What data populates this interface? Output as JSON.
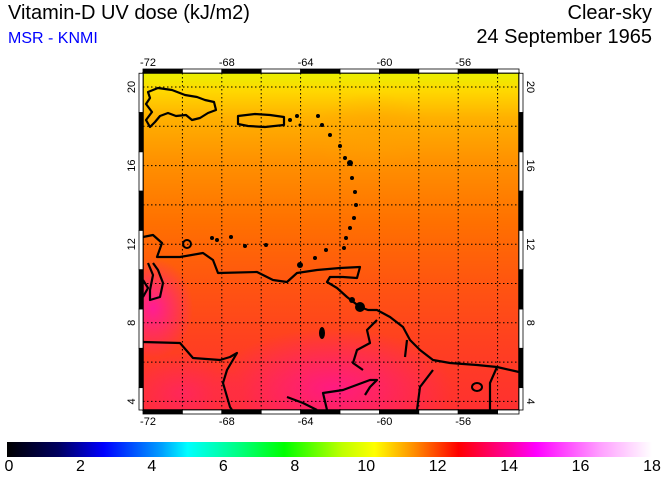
{
  "header": {
    "title": "Vitamin-D UV dose (kJ/m2)",
    "source": "MSR - KNMI",
    "mode": "Clear-sky",
    "date": "24 September 1965"
  },
  "map": {
    "lon_ticks": [
      "-72",
      "-68",
      "-64",
      "-60",
      "-56"
    ],
    "lat_ticks": [
      "20",
      "16",
      "12",
      "8",
      "4"
    ]
  },
  "colorbar": {
    "labels": [
      "0",
      "2",
      "4",
      "6",
      "8",
      "10",
      "12",
      "14",
      "16",
      "18"
    ],
    "min": 0,
    "max": 18,
    "colors": [
      "#000000",
      "#0000ff",
      "#00ffff",
      "#00ff00",
      "#ffff00",
      "#ff0000",
      "#ff00ff",
      "#ffffff"
    ]
  }
}
